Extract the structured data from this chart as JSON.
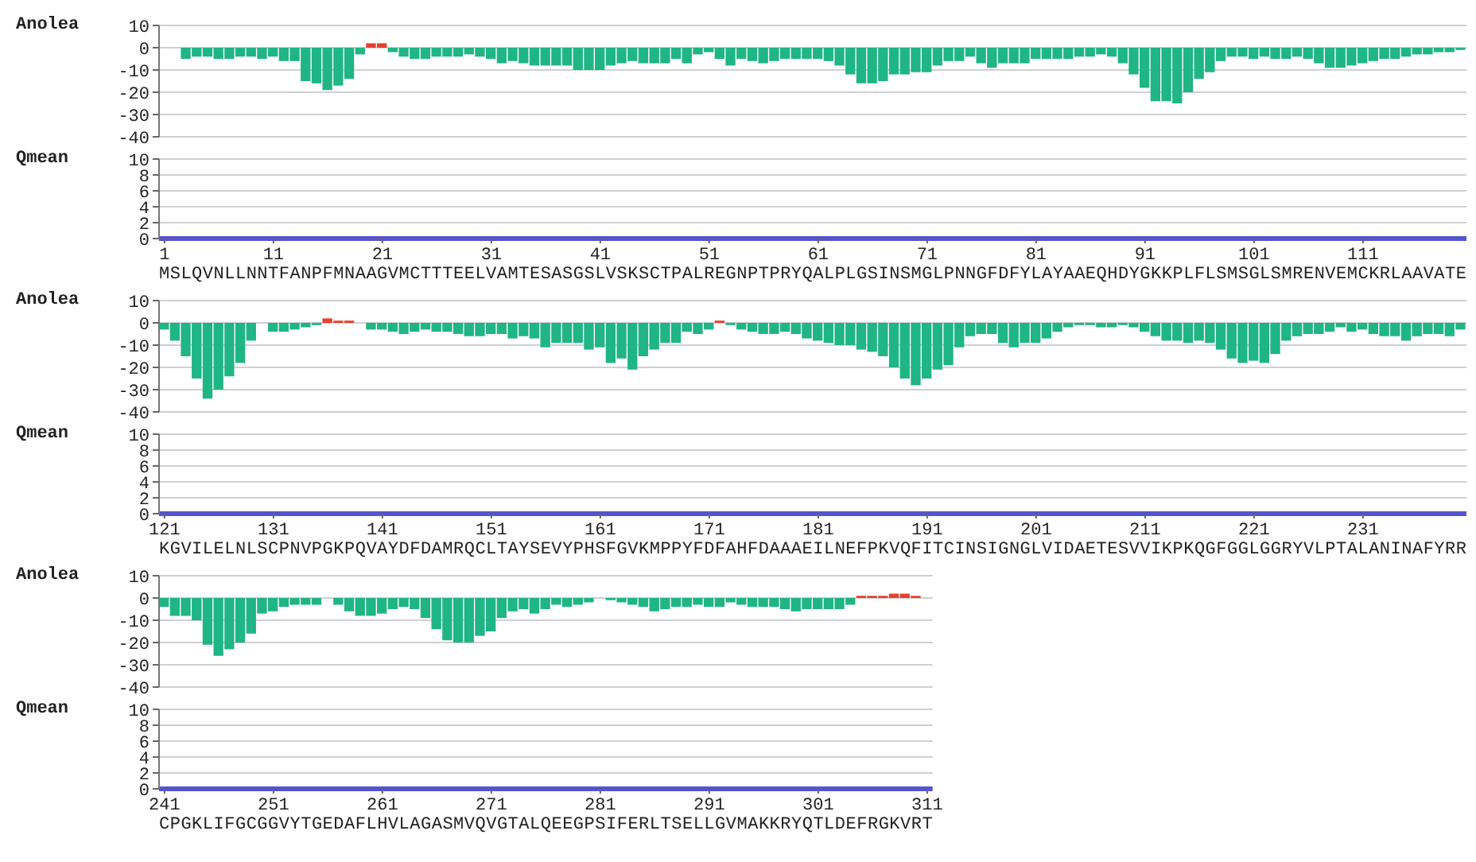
{
  "chart_data": [
    {
      "type": "bar",
      "ylabel": "Anolea",
      "stacked": true,
      "grid": "y",
      "tick_labels": "y",
      "xlim": [
        0.5,
        120.5
      ],
      "ylim": [
        -40,
        10
      ],
      "yticks": [
        10,
        0,
        -10,
        -20,
        -30,
        -40
      ],
      "x": [
        1,
        2,
        3,
        4,
        5,
        6,
        7,
        8,
        9,
        10,
        11,
        12,
        13,
        14,
        15,
        16,
        17,
        18,
        19,
        20,
        21,
        22,
        23,
        24,
        25,
        26,
        27,
        28,
        29,
        30,
        31,
        32,
        33,
        34,
        35,
        36,
        37,
        38,
        39,
        40,
        41,
        42,
        43,
        44,
        45,
        46,
        47,
        48,
        49,
        50,
        51,
        52,
        53,
        54,
        55,
        56,
        57,
        58,
        59,
        60,
        61,
        62,
        63,
        64,
        65,
        66,
        67,
        68,
        69,
        70,
        71,
        72,
        73,
        74,
        75,
        76,
        77,
        78,
        79,
        80,
        81,
        82,
        83,
        84,
        85,
        86,
        87,
        88,
        89,
        90,
        91,
        92,
        93,
        94,
        95,
        96,
        97,
        98,
        99,
        100,
        101,
        102,
        103,
        104,
        105,
        106,
        107,
        108,
        109,
        110,
        111,
        112,
        113,
        114,
        115,
        116,
        117,
        118,
        119,
        120
      ],
      "series": [
        {
          "color": "#1fb584",
          "values": [
            0,
            0,
            -5,
            -4,
            -4,
            -5,
            -5,
            -4,
            -4,
            -5,
            -4,
            -6,
            -6,
            -15,
            -16,
            -19,
            -17,
            -14,
            -3,
            null,
            null,
            -2,
            -4,
            -5,
            -5,
            -4,
            -4,
            -4,
            -3,
            -4,
            -5,
            -7,
            -6,
            -7,
            -8,
            -8,
            -8,
            -8,
            -10,
            -10,
            -10,
            -8,
            -7,
            -6,
            -7,
            -7,
            -7,
            -5,
            -7,
            -3,
            -2,
            -5,
            -8,
            -5,
            -6,
            -7,
            -6,
            -5,
            -5,
            -5,
            -5,
            -6,
            -8,
            -12,
            -16,
            -16,
            -15,
            -12,
            -12,
            -11,
            -11,
            -8,
            -6,
            -6,
            -4,
            -7,
            -9,
            -7,
            -7,
            -7,
            -5,
            -5,
            -5,
            -5,
            -4,
            -4,
            -3,
            -4,
            -7,
            -12,
            -18,
            -24,
            -24,
            -25,
            -20,
            -14,
            -11,
            -6,
            -4,
            -4,
            -5,
            -4,
            -5,
            -5,
            -4,
            -5,
            -7,
            -9,
            -9,
            -8,
            -7,
            -6,
            -5,
            -5,
            -4,
            -3,
            -3,
            -2,
            -2,
            -1
          ]
        },
        {
          "color": "#e8402f",
          "values": [
            null,
            null,
            null,
            null,
            null,
            null,
            null,
            null,
            null,
            null,
            null,
            null,
            null,
            null,
            null,
            null,
            null,
            null,
            null,
            2,
            2,
            null,
            null,
            null,
            null,
            null,
            null,
            null,
            null,
            null,
            null,
            null,
            null,
            null,
            null,
            null,
            null,
            null,
            null,
            null,
            null,
            null,
            null,
            null,
            null,
            null,
            null,
            null,
            null,
            null,
            null,
            null,
            null,
            null,
            null,
            null,
            null,
            null,
            null,
            null,
            null,
            null,
            null,
            null,
            null,
            null,
            null,
            null,
            null,
            null,
            null,
            null,
            null,
            null,
            null,
            null,
            null,
            null,
            null,
            null,
            null,
            null,
            null,
            null,
            null,
            null,
            null,
            null,
            null,
            null,
            null,
            null,
            null,
            null,
            null,
            null,
            null,
            null,
            null,
            null,
            null,
            null,
            null,
            null,
            null,
            null,
            null,
            null,
            null,
            null,
            null,
            null,
            null,
            null,
            null,
            null,
            null,
            null,
            null,
            null
          ]
        }
      ]
    },
    {
      "type": "bar",
      "ylabel": "Qmean",
      "grid": "y",
      "xlim": [
        0.5,
        120.5
      ],
      "xticks": [
        1,
        11,
        21,
        31,
        41,
        51,
        61,
        71,
        81,
        91,
        101,
        111
      ],
      "ylim": [
        0,
        10
      ],
      "yticks": [
        0,
        2,
        4,
        6,
        8,
        10
      ],
      "annotations": [
        "MSLQVNLLNNTFANPFMNAAGVMCTTTEELVAMTESASGSLVSKSCTPALREGNPTPRYQALPLGSINSMGLPNNGFDFYLAYAAEQHDYGKKPLFLSMSGLSMRENVEMCKRLAAVATE"
      ]
    },
    {
      "type": "bar",
      "ylabel": "Anolea",
      "stacked": true,
      "grid": "y",
      "tick_labels": "y",
      "xlim": [
        120.5,
        240.5
      ],
      "ylim": [
        -40,
        10
      ],
      "yticks": [
        10,
        0,
        -10,
        -20,
        -30,
        -40
      ],
      "x": [
        121,
        122,
        123,
        124,
        125,
        126,
        127,
        128,
        129,
        130,
        131,
        132,
        133,
        134,
        135,
        136,
        137,
        138,
        139,
        140,
        141,
        142,
        143,
        144,
        145,
        146,
        147,
        148,
        149,
        150,
        151,
        152,
        153,
        154,
        155,
        156,
        157,
        158,
        159,
        160,
        161,
        162,
        163,
        164,
        165,
        166,
        167,
        168,
        169,
        170,
        171,
        172,
        173,
        174,
        175,
        176,
        177,
        178,
        179,
        180,
        181,
        182,
        183,
        184,
        185,
        186,
        187,
        188,
        189,
        190,
        191,
        192,
        193,
        194,
        195,
        196,
        197,
        198,
        199,
        200,
        201,
        202,
        203,
        204,
        205,
        206,
        207,
        208,
        209,
        210,
        211,
        212,
        213,
        214,
        215,
        216,
        217,
        218,
        219,
        220,
        221,
        222,
        223,
        224,
        225,
        226,
        227,
        228,
        229,
        230,
        231,
        232,
        233,
        234,
        235,
        236,
        237,
        238,
        239,
        240
      ],
      "series": [
        {
          "color": "#1fb584",
          "values": [
            -3,
            -8,
            -15,
            -25,
            -34,
            -30,
            -24,
            -18,
            -8,
            0,
            -4,
            -4,
            -3,
            -2,
            -1,
            null,
            null,
            null,
            0,
            -3,
            -3,
            -4,
            -5,
            -4,
            -3,
            -4,
            -4,
            -5,
            -6,
            -6,
            -5,
            -5,
            -7,
            -6,
            -7,
            -11,
            -9,
            -9,
            -9,
            -12,
            -11,
            -18,
            -16,
            -21,
            -15,
            -12,
            -9,
            -9,
            -4,
            -5,
            -3,
            null,
            -1,
            -3,
            -4,
            -5,
            -5,
            -4,
            -5,
            -7,
            -8,
            -9,
            -10,
            -10,
            -12,
            -13,
            -15,
            -20,
            -25,
            -28,
            -25,
            -21,
            -19,
            -11,
            -6,
            -5,
            -5,
            -9,
            -11,
            -9,
            -9,
            -7,
            -4,
            -2,
            -1,
            -1,
            -2,
            -2,
            -1,
            -2,
            -4,
            -6,
            -8,
            -8,
            -9,
            -8,
            -9,
            -12,
            -16,
            -18,
            -17,
            -18,
            -14,
            -8,
            -6,
            -5,
            -5,
            -4,
            -2,
            -4,
            -3,
            -5,
            -6,
            -6,
            -8,
            -6,
            -5,
            -5,
            -6,
            -3
          ]
        },
        {
          "color": "#e8402f",
          "values": [
            null,
            null,
            null,
            null,
            null,
            null,
            null,
            null,
            null,
            null,
            null,
            null,
            null,
            null,
            null,
            2,
            1,
            1,
            null,
            null,
            null,
            null,
            null,
            null,
            null,
            null,
            null,
            null,
            null,
            null,
            null,
            null,
            null,
            null,
            null,
            null,
            null,
            null,
            null,
            null,
            null,
            null,
            null,
            null,
            null,
            null,
            null,
            null,
            null,
            null,
            null,
            1,
            null,
            null,
            null,
            null,
            null,
            null,
            null,
            null,
            null,
            null,
            null,
            null,
            null,
            null,
            null,
            null,
            null,
            null,
            null,
            null,
            null,
            null,
            null,
            null,
            null,
            null,
            null,
            null,
            null,
            null,
            null,
            null,
            null,
            null,
            null,
            null,
            null,
            null,
            null,
            null,
            null,
            null,
            null,
            null,
            null,
            null,
            null,
            null,
            null,
            null,
            null,
            null,
            null,
            null,
            null,
            null,
            null,
            null,
            null,
            null,
            null,
            null,
            null,
            null,
            null,
            null,
            null,
            null
          ]
        }
      ]
    },
    {
      "type": "bar",
      "ylabel": "Qmean",
      "grid": "y",
      "xlim": [
        120.5,
        240.5
      ],
      "xticks": [
        121,
        131,
        141,
        151,
        161,
        171,
        181,
        191,
        201,
        211,
        221,
        231
      ],
      "ylim": [
        0,
        10
      ],
      "yticks": [
        0,
        2,
        4,
        6,
        8,
        10
      ],
      "annotations": [
        "KGVILELNLSCPNVPGKPQVAYDFDAMRQCLTAYSEVYPHSFGVKMPPYFDFAHFDAAAEILNEFPKVQFITCINSIGNGLVIDAETESVVIKPKQGFGGLGGRYVLPTALANINAFYRR"
      ]
    },
    {
      "type": "bar",
      "ylabel": "Anolea",
      "stacked": true,
      "grid": "y",
      "tick_labels": "y",
      "xlim": [
        240.5,
        311.5
      ],
      "ylim": [
        -40,
        10
      ],
      "yticks": [
        10,
        0,
        -10,
        -20,
        -30,
        -40
      ],
      "x": [
        241,
        242,
        243,
        244,
        245,
        246,
        247,
        248,
        249,
        250,
        251,
        252,
        253,
        254,
        255,
        256,
        257,
        258,
        259,
        260,
        261,
        262,
        263,
        264,
        265,
        266,
        267,
        268,
        269,
        270,
        271,
        272,
        273,
        274,
        275,
        276,
        277,
        278,
        279,
        280,
        281,
        282,
        283,
        284,
        285,
        286,
        287,
        288,
        289,
        290,
        291,
        292,
        293,
        294,
        295,
        296,
        297,
        298,
        299,
        300,
        301,
        302,
        303,
        304,
        305,
        306,
        307,
        308,
        309,
        310,
        311
      ],
      "series": [
        {
          "color": "#1fb584",
          "values": [
            -4,
            -8,
            -8,
            -10,
            -21,
            -26,
            -23,
            -20,
            -16,
            -7,
            -6,
            -4,
            -3,
            -3,
            -3,
            0,
            -3,
            -6,
            -8,
            -8,
            -7,
            -5,
            -4,
            -5,
            -9,
            -14,
            -19,
            -20,
            -20,
            -17,
            -15,
            -9,
            -6,
            -5,
            -7,
            -5,
            -3,
            -4,
            -3,
            -2,
            0,
            -1,
            -2,
            -3,
            -4,
            -6,
            -5,
            -4,
            -4,
            -3,
            -4,
            -4,
            -2,
            -3,
            -4,
            -4,
            -4,
            -5,
            -6,
            -5,
            -5,
            -5,
            -5,
            -3,
            null,
            null,
            null,
            null,
            null,
            null,
            0
          ]
        },
        {
          "color": "#e8402f",
          "values": [
            null,
            null,
            null,
            null,
            null,
            null,
            null,
            null,
            null,
            null,
            null,
            null,
            null,
            null,
            null,
            null,
            null,
            null,
            null,
            null,
            null,
            null,
            null,
            null,
            null,
            null,
            null,
            null,
            null,
            null,
            null,
            null,
            null,
            null,
            null,
            null,
            null,
            null,
            null,
            null,
            null,
            null,
            null,
            null,
            null,
            null,
            null,
            null,
            null,
            null,
            null,
            null,
            null,
            null,
            null,
            null,
            null,
            null,
            null,
            null,
            null,
            null,
            null,
            null,
            1,
            1,
            1,
            2,
            2,
            1,
            null
          ]
        }
      ]
    },
    {
      "type": "bar",
      "ylabel": "Qmean",
      "grid": "y",
      "xlim": [
        240.5,
        311.5
      ],
      "xticks": [
        241,
        251,
        261,
        271,
        281,
        291,
        301,
        311
      ],
      "ylim": [
        0,
        10
      ],
      "yticks": [
        0,
        2,
        4,
        6,
        8,
        10
      ],
      "annotations": [
        "CPGKLIFGCGGVYTGEDAFLHVLAGASMVQVGTALQEEGPSIFERLTSELLGVMAKKRYQTLDEFRGKVRT"
      ]
    }
  ]
}
